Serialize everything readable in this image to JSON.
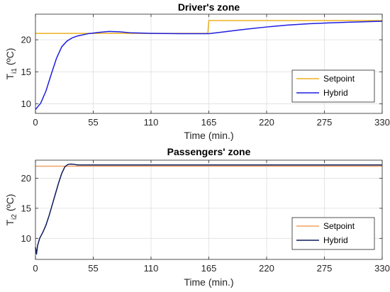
{
  "chart_data": [
    {
      "type": "line",
      "title": "Driver's zone",
      "xlabel": "Time (min.)",
      "ylabel_main": "T",
      "ylabel_sub": "i1",
      "ylabel_unit": " (ºC)",
      "xlim": [
        0,
        330
      ],
      "ylim": [
        8.5,
        24
      ],
      "xticks": [
        0,
        55,
        110,
        165,
        220,
        275,
        330
      ],
      "yticks": [
        10,
        15,
        20
      ],
      "grid": true,
      "legend_position": "bottom-right",
      "series": [
        {
          "name": "Setpoint",
          "color": "#EDB120",
          "x": [
            0,
            164,
            164,
            165,
            330
          ],
          "y": [
            21,
            21,
            21,
            23,
            23
          ]
        },
        {
          "name": "Hybrid",
          "color": "#1E1EE0",
          "x": [
            0,
            5,
            10,
            15,
            20,
            25,
            30,
            35,
            40,
            50,
            60,
            70,
            80,
            90,
            100,
            110,
            120,
            130,
            140,
            150,
            160,
            165,
            170,
            180,
            190,
            200,
            220,
            240,
            260,
            280,
            300,
            320,
            330
          ],
          "y": [
            9.1,
            10.1,
            12.0,
            14.6,
            17.1,
            18.9,
            19.8,
            20.3,
            20.6,
            20.95,
            21.15,
            21.3,
            21.25,
            21.1,
            21.05,
            21.0,
            20.98,
            20.97,
            20.96,
            20.95,
            20.95,
            20.95,
            21.05,
            21.25,
            21.45,
            21.65,
            22.0,
            22.3,
            22.5,
            22.65,
            22.75,
            22.85,
            22.9
          ]
        }
      ]
    },
    {
      "type": "line",
      "title": "Passengers' zone",
      "xlabel": "Time (min.)",
      "ylabel_main": "T",
      "ylabel_sub": "i2",
      "ylabel_unit": " (ºC)",
      "xlim": [
        0,
        330
      ],
      "ylim": [
        6.5,
        23
      ],
      "xticks": [
        0,
        55,
        110,
        165,
        220,
        275,
        330
      ],
      "yticks": [
        10,
        15,
        20
      ],
      "grid": true,
      "legend_position": "bottom-right",
      "series": [
        {
          "name": "Setpoint",
          "color": "#F0A060",
          "x": [
            0,
            330
          ],
          "y": [
            22,
            22
          ]
        },
        {
          "name": "Hybrid",
          "color": "#0D1A5C",
          "x": [
            0,
            1,
            2,
            4,
            7,
            10,
            13,
            16,
            19,
            22,
            25,
            28,
            31,
            34,
            37,
            40,
            50,
            60,
            80,
            100,
            150,
            200,
            250,
            300,
            330
          ],
          "y": [
            8.5,
            7.4,
            8.8,
            10.0,
            11.0,
            12.2,
            13.8,
            15.6,
            17.4,
            19.2,
            20.8,
            21.9,
            22.3,
            22.35,
            22.3,
            22.2,
            22.2,
            22.2,
            22.2,
            22.2,
            22.2,
            22.2,
            22.2,
            22.2,
            22.2
          ]
        }
      ]
    }
  ]
}
